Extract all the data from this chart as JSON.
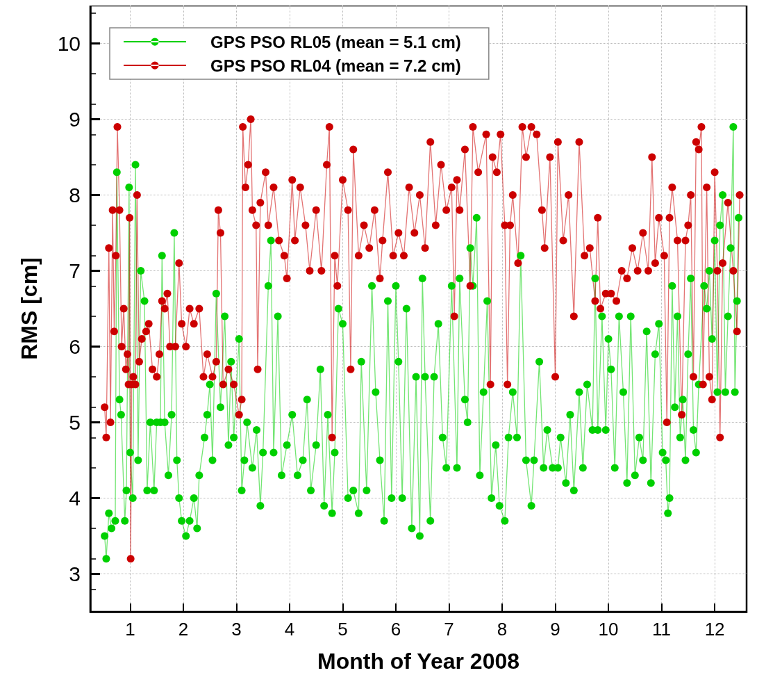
{
  "chart_data": {
    "type": "line",
    "xlabel": "Month of Year 2008",
    "ylabel": "RMS [cm]",
    "xlim": [
      0.25,
      12.6
    ],
    "xticks": [
      1,
      2,
      3,
      4,
      5,
      6,
      7,
      8,
      9,
      10,
      11,
      12
    ],
    "ylim": [
      2.5,
      10.5
    ],
    "yticks": [
      3,
      4,
      5,
      6,
      7,
      8,
      9,
      10
    ],
    "grid": true,
    "legend": "top left",
    "marker": "circle",
    "line_style": "solid",
    "series": [
      {
        "name": "GPS PSO RL05 (mean = 5.1 cm)",
        "color": "#00d000",
        "x": [
          0.52,
          0.55,
          0.6,
          0.65,
          0.72,
          0.75,
          0.8,
          0.83,
          0.9,
          0.93,
          0.98,
          1.0,
          1.05,
          1.1,
          1.15,
          1.2,
          1.27,
          1.32,
          1.38,
          1.45,
          1.5,
          1.57,
          1.6,
          1.65,
          1.72,
          1.78,
          1.83,
          1.88,
          1.92,
          1.97,
          2.05,
          2.12,
          2.2,
          2.26,
          2.3,
          2.4,
          2.45,
          2.5,
          2.55,
          2.62,
          2.7,
          2.78,
          2.85,
          2.9,
          2.95,
          3.05,
          3.1,
          3.15,
          3.2,
          3.3,
          3.38,
          3.45,
          3.5,
          3.6,
          3.65,
          3.7,
          3.78,
          3.85,
          3.95,
          4.05,
          4.15,
          4.25,
          4.33,
          4.4,
          4.5,
          4.58,
          4.65,
          4.72,
          4.8,
          4.85,
          4.92,
          5.0,
          5.1,
          5.2,
          5.3,
          5.35,
          5.45,
          5.55,
          5.62,
          5.7,
          5.78,
          5.85,
          5.92,
          6.0,
          6.05,
          6.12,
          6.2,
          6.3,
          6.38,
          6.45,
          6.5,
          6.55,
          6.65,
          6.72,
          6.8,
          6.88,
          6.95,
          7.05,
          7.15,
          7.2,
          7.3,
          7.35,
          7.4,
          7.45,
          7.52,
          7.58,
          7.65,
          7.72,
          7.8,
          7.88,
          7.95,
          8.05,
          8.12,
          8.2,
          8.28,
          8.35,
          8.45,
          8.55,
          8.6,
          8.7,
          8.78,
          8.85,
          8.95,
          9.05,
          9.1,
          9.2,
          9.28,
          9.35,
          9.45,
          9.52,
          9.6,
          9.7,
          9.75,
          9.8,
          9.88,
          9.95,
          10.0,
          10.05,
          10.12,
          10.2,
          10.28,
          10.35,
          10.42,
          10.5,
          10.58,
          10.65,
          10.72,
          10.8,
          10.88,
          10.95,
          11.02,
          11.08,
          11.12,
          11.15,
          11.2,
          11.25,
          11.3,
          11.35,
          11.4,
          11.45,
          11.5,
          11.55,
          11.6,
          11.65,
          11.7,
          11.8,
          11.85,
          11.9,
          11.95,
          12.0,
          12.05,
          12.1,
          12.15,
          12.2,
          12.25,
          12.3,
          12.35,
          12.38,
          12.42,
          12.45
        ],
        "values": [
          3.5,
          3.2,
          3.8,
          3.6,
          3.7,
          8.3,
          5.3,
          5.1,
          3.7,
          4.1,
          8.1,
          4.6,
          4.0,
          8.4,
          4.5,
          7.0,
          6.6,
          4.1,
          5.0,
          4.1,
          5.0,
          5.0,
          7.2,
          5.0,
          4.3,
          5.1,
          7.5,
          4.5,
          4.0,
          3.7,
          3.5,
          3.7,
          4.0,
          3.6,
          4.3,
          4.8,
          5.1,
          5.5,
          4.5,
          6.7,
          5.2,
          6.4,
          4.7,
          5.8,
          4.8,
          6.1,
          4.1,
          4.5,
          5.0,
          4.4,
          4.9,
          3.9,
          4.6,
          6.8,
          7.4,
          4.6,
          6.4,
          4.3,
          4.7,
          5.1,
          4.3,
          4.5,
          5.3,
          4.1,
          4.7,
          5.7,
          3.9,
          5.1,
          3.8,
          4.6,
          6.5,
          6.3,
          4.0,
          4.1,
          3.8,
          5.8,
          4.1,
          6.8,
          5.4,
          4.5,
          3.7,
          6.6,
          4.0,
          6.8,
          5.8,
          4.0,
          6.5,
          3.6,
          5.6,
          3.5,
          6.9,
          5.6,
          3.7,
          5.6,
          6.3,
          4.8,
          4.4,
          6.8,
          4.4,
          6.9,
          5.3,
          5.0,
          7.3,
          6.8,
          7.7,
          4.3,
          5.4,
          6.6,
          4.0,
          4.7,
          3.9,
          3.7,
          4.8,
          5.4,
          4.8,
          7.2,
          4.5,
          3.9,
          4.5,
          5.8,
          4.4,
          4.9,
          4.4,
          4.4,
          4.8,
          4.2,
          5.1,
          4.1,
          5.4,
          4.4,
          5.5,
          4.9,
          6.9,
          4.9,
          6.4,
          4.9,
          6.1,
          5.7,
          4.4,
          6.4,
          5.4,
          4.2,
          6.4,
          4.3,
          4.8,
          4.5,
          6.2,
          4.2,
          5.9,
          6.3,
          4.6,
          4.5,
          3.8,
          4.0,
          6.8,
          5.2,
          6.4,
          4.8,
          5.3,
          4.5,
          5.9,
          6.9,
          4.9,
          4.6,
          5.5,
          6.8,
          6.5,
          7.0,
          6.1,
          7.4,
          5.4,
          7.6,
          8.0,
          5.4,
          6.4,
          7.3,
          8.9,
          5.4,
          6.6,
          7.7
        ]
      },
      {
        "name": "GPS PSO RL04 (mean = 7.2 cm)",
        "color": "#cc0000",
        "x": [
          0.52,
          0.55,
          0.6,
          0.63,
          0.67,
          0.7,
          0.73,
          0.76,
          0.8,
          0.84,
          0.88,
          0.92,
          0.95,
          0.97,
          0.99,
          1.01,
          1.03,
          1.06,
          1.1,
          1.13,
          1.17,
          1.22,
          1.3,
          1.35,
          1.42,
          1.5,
          1.55,
          1.6,
          1.65,
          1.7,
          1.75,
          1.85,
          1.92,
          1.97,
          2.05,
          2.12,
          2.2,
          2.3,
          2.38,
          2.45,
          2.55,
          2.62,
          2.66,
          2.7,
          2.75,
          2.85,
          2.95,
          3.05,
          3.1,
          3.12,
          3.17,
          3.22,
          3.27,
          3.3,
          3.37,
          3.4,
          3.45,
          3.55,
          3.6,
          3.7,
          3.8,
          3.9,
          3.95,
          4.05,
          4.1,
          4.2,
          4.3,
          4.38,
          4.5,
          4.6,
          4.7,
          4.75,
          4.8,
          4.85,
          4.9,
          5.0,
          5.1,
          5.15,
          5.2,
          5.3,
          5.4,
          5.5,
          5.6,
          5.7,
          5.75,
          5.85,
          5.95,
          6.05,
          6.15,
          6.25,
          6.35,
          6.45,
          6.55,
          6.65,
          6.75,
          6.85,
          6.95,
          7.05,
          7.1,
          7.15,
          7.2,
          7.3,
          7.4,
          7.45,
          7.55,
          7.7,
          7.78,
          7.82,
          7.9,
          7.97,
          8.05,
          8.1,
          8.15,
          8.2,
          8.3,
          8.38,
          8.45,
          8.55,
          8.65,
          8.75,
          8.8,
          8.9,
          9.0,
          9.05,
          9.15,
          9.25,
          9.35,
          9.45,
          9.55,
          9.65,
          9.75,
          9.8,
          9.85,
          9.95,
          10.05,
          10.15,
          10.25,
          10.35,
          10.45,
          10.55,
          10.65,
          10.75,
          10.82,
          10.88,
          10.95,
          11.05,
          11.1,
          11.15,
          11.2,
          11.3,
          11.38,
          11.45,
          11.5,
          11.55,
          11.6,
          11.65,
          11.7,
          11.75,
          11.78,
          11.85,
          11.9,
          11.95,
          12.0,
          12.05,
          12.1,
          12.15,
          12.25,
          12.35,
          12.42,
          12.47
        ],
        "values": [
          5.2,
          4.8,
          7.3,
          5.0,
          7.8,
          6.2,
          7.2,
          8.9,
          7.8,
          6.0,
          6.5,
          5.7,
          5.9,
          5.5,
          7.7,
          3.2,
          5.5,
          5.6,
          5.5,
          8.0,
          5.8,
          6.1,
          6.2,
          6.3,
          5.7,
          5.6,
          5.9,
          6.6,
          6.5,
          6.7,
          6.0,
          6.0,
          7.1,
          6.3,
          6.0,
          6.5,
          6.3,
          6.5,
          5.6,
          5.9,
          5.6,
          5.8,
          7.8,
          7.5,
          5.5,
          5.7,
          5.5,
          5.1,
          5.3,
          8.9,
          8.1,
          8.4,
          9.0,
          7.8,
          7.6,
          5.7,
          7.9,
          8.3,
          7.6,
          8.1,
          7.4,
          7.2,
          6.9,
          8.2,
          7.4,
          8.1,
          7.6,
          7.0,
          7.8,
          7.0,
          8.4,
          8.9,
          4.8,
          7.2,
          6.8,
          8.2,
          7.8,
          5.7,
          8.6,
          7.2,
          7.6,
          7.3,
          7.8,
          6.9,
          7.4,
          8.3,
          7.2,
          7.5,
          7.2,
          8.1,
          7.5,
          8.0,
          7.3,
          8.7,
          7.6,
          8.4,
          7.8,
          8.1,
          6.4,
          8.2,
          7.8,
          8.6,
          6.8,
          8.9,
          8.3,
          8.8,
          5.5,
          8.5,
          8.3,
          8.8,
          7.6,
          5.5,
          7.6,
          8.0,
          7.1,
          8.9,
          8.5,
          8.9,
          8.8,
          7.8,
          7.3,
          8.5,
          5.6,
          8.7,
          7.4,
          8.0,
          6.4,
          8.7,
          7.2,
          7.3,
          6.6,
          7.7,
          6.5,
          6.7,
          6.7,
          6.6,
          7.0,
          6.9,
          7.3,
          7.0,
          7.5,
          7.0,
          8.5,
          7.1,
          7.7,
          7.2,
          5.0,
          7.7,
          8.1,
          7.4,
          5.1,
          7.4,
          7.6,
          8.0,
          5.6,
          8.7,
          8.6,
          8.9,
          5.5,
          8.1,
          5.6,
          5.3,
          8.3,
          7.0,
          4.8,
          7.1,
          7.9,
          7.0,
          6.2,
          8.0
        ]
      }
    ]
  }
}
